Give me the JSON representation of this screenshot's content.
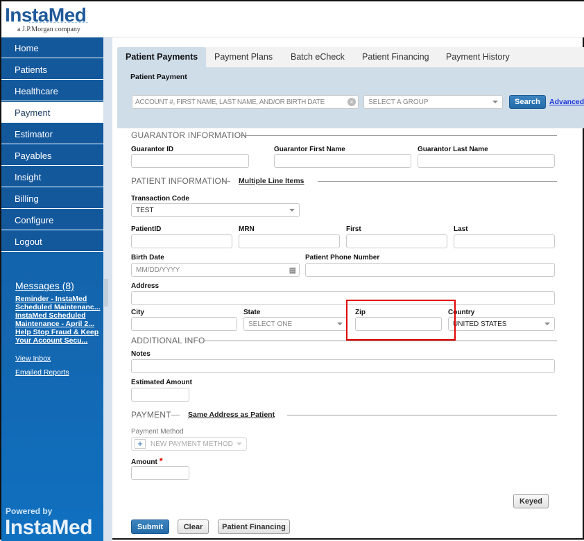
{
  "brand": {
    "name": "InstaMed",
    "tagline": "a J.P.Morgan company",
    "powered_by": "Powered by",
    "powered_name": "InstaMed"
  },
  "sidebar": {
    "items": [
      {
        "label": "Home"
      },
      {
        "label": "Patients"
      },
      {
        "label": "Healthcare"
      },
      {
        "label": "Payment",
        "active": true
      },
      {
        "label": "Estimator"
      },
      {
        "label": "Payables"
      },
      {
        "label": "Insight"
      },
      {
        "label": "Billing"
      },
      {
        "label": "Configure"
      },
      {
        "label": "Logout"
      }
    ],
    "messages_title": "Messages (8)",
    "messages": [
      "Reminder - InstaMed",
      "Scheduled Maintenanc...",
      "InstaMed Scheduled",
      "Maintenance - April 2...",
      "Help Stop Fraud & Keep",
      "Your Account Secu..."
    ],
    "view_inbox": "View Inbox",
    "emailed_reports": "Emailed Reports"
  },
  "tabs": [
    {
      "label": "Patient Payments",
      "active": true
    },
    {
      "label": "Payment Plans"
    },
    {
      "label": "Batch eCheck"
    },
    {
      "label": "Patient Financing"
    },
    {
      "label": "Payment History"
    }
  ],
  "search": {
    "title": "Patient Payment",
    "placeholder": "ACCOUNT #, FIRST NAME, LAST NAME, AND/OR BIRTH DATE",
    "group": "SELECT A GROUP",
    "button": "Search",
    "advanced": "Advanced"
  },
  "guarantor": {
    "section": "GUARANTOR INFORMATION",
    "id": "Guarantor ID",
    "first": "Guarantor First Name",
    "last": "Guarantor Last Name"
  },
  "patient": {
    "section": "PATIENT INFORMATION",
    "multiple": "Multiple Line Items",
    "transaction_code": "Transaction Code",
    "transaction_value": "TEST",
    "patient_id": "PatientID",
    "mrn": "MRN",
    "first": "First",
    "last": "Last",
    "birth_date": "Birth Date",
    "birth_placeholder": "MM/DD/YYYY",
    "phone": "Patient Phone Number",
    "address": "Address",
    "city": "City",
    "state": "State",
    "state_value": "SELECT ONE",
    "zip": "Zip",
    "country": "Country",
    "country_value": "UNITED STATES"
  },
  "additional": {
    "section": "ADDITIONAL INFO",
    "notes": "Notes",
    "estimated": "Estimated Amount"
  },
  "payment": {
    "section": "PAYMENT",
    "same_address": "Same Address as Patient",
    "method": "Payment Method",
    "method_value": "NEW PAYMENT METHOD",
    "amount": "Amount",
    "required": "*"
  },
  "buttons": {
    "keyed": "Keyed",
    "submit": "Submit",
    "clear": "Clear",
    "financing": "Patient Financing"
  },
  "highlight_color": "#e00000"
}
